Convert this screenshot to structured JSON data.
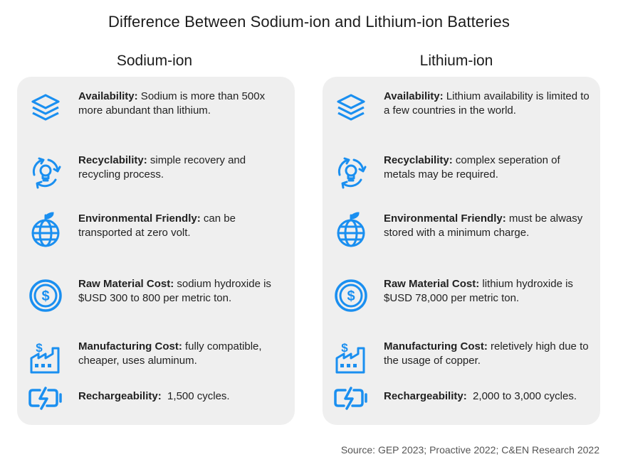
{
  "title": "Difference Between Sodium-ion and Lithium-ion Batteries",
  "accent_color": "#1a8ff0",
  "columns": [
    {
      "heading": "Sodium-ion",
      "rows": [
        {
          "icon": "layers-icon",
          "label": "Availability:",
          "text": " Sodium is more than 500x more abundant than lithium."
        },
        {
          "icon": "recycle-bulb-icon",
          "label": "Recyclability:",
          "text": " simple recovery and recycling process."
        },
        {
          "icon": "globe-leaf-icon",
          "label": "Environmental Friendly:",
          "text": " can be transported at zero volt."
        },
        {
          "icon": "dollar-coin-icon",
          "label": "Raw Material Cost:",
          "text": " sodium hydroxide is $USD 300 to 800 per metric ton."
        },
        {
          "icon": "factory-dollar-icon",
          "label": "Manufacturing Cost:",
          "text": " fully compatible, cheaper, uses aluminum."
        },
        {
          "icon": "battery-charging-icon",
          "label": "Rechargeability:",
          "text": "  1,500 cycles."
        }
      ]
    },
    {
      "heading": "Lithium-ion",
      "rows": [
        {
          "icon": "layers-icon",
          "label": "Availability:",
          "text": " Lithium availability is limited to a few countries in the world."
        },
        {
          "icon": "recycle-bulb-icon",
          "label": "Recyclability:",
          "text": " complex seperation of metals may be required."
        },
        {
          "icon": "globe-leaf-icon",
          "label": "Environmental Friendly:",
          "text": " must be alwasy stored with a minimum charge."
        },
        {
          "icon": "dollar-coin-icon",
          "label": "Raw Material Cost:",
          "text": " lithium hydroxide is $USD 78,000 per metric ton."
        },
        {
          "icon": "factory-dollar-icon",
          "label": "Manufacturing Cost:",
          "text": " reletively high due to the usage of copper."
        },
        {
          "icon": "battery-charging-icon",
          "label": "Rechargeability:",
          "text": "  2,000 to 3,000 cycles."
        }
      ]
    }
  ],
  "source": "Source: GEP 2023; Proactive 2022; C&EN Research 2022"
}
